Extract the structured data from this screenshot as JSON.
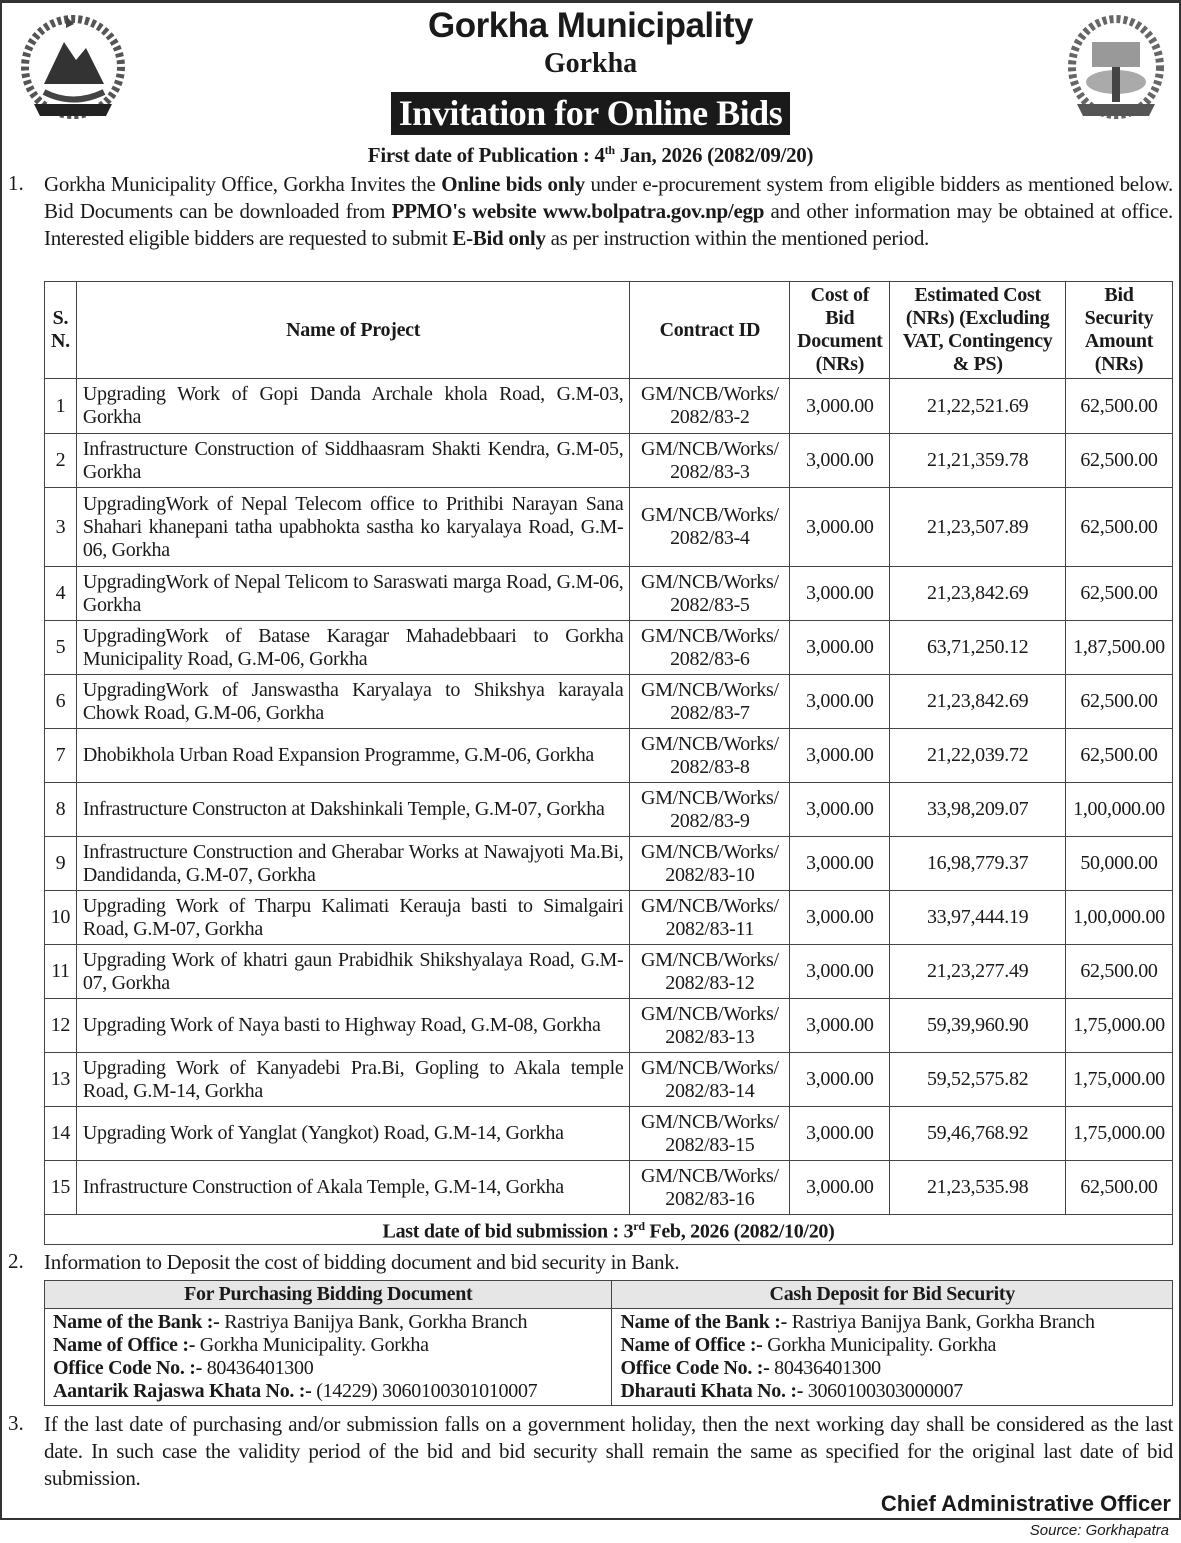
{
  "header": {
    "title": "Gorkha Municipality",
    "subtitle": "Gorkha",
    "notice_title": "Invitation for Online Bids",
    "pub_label": "First date of Publication : 4",
    "pub_sup": "th",
    "pub_rest": " Jan, 2026 (2082/09/20)"
  },
  "para1": {
    "num": "1.",
    "t1": "Gorkha Municipality Office, Gorkha Invites the ",
    "b1": "Online bids only",
    "t2": " under e-procurement system from eligible bidders as mentioned below. Bid Documents can be downloaded from ",
    "b2": "PPMO's website www.bolpatra.gov.np/egp",
    "t3": " and other information may be obtained at office. Interested eligible bidders are requested to submit ",
    "b3": "E-Bid only",
    "t4": " as per instruction within the mentioned period."
  },
  "table": {
    "headers": [
      "S. N.",
      "Name of Project",
      "Contract ID",
      "Cost of Bid Document (NRs)",
      "Estimated Cost (NRs) (Excluding VAT, Contingency & PS)",
      "Bid Security Amount (NRs)"
    ],
    "rows": [
      [
        "1",
        "Upgrading Work of Gopi Danda Archale khola Road, G.M-03, Gorkha",
        "GM/NCB/Works/ 2082/83-2",
        "3,000.00",
        "21,22,521.69",
        "62,500.00"
      ],
      [
        "2",
        "Infrastructure Construction of Siddhaasram Shakti Kendra, G.M-05, Gorkha",
        "GM/NCB/Works/ 2082/83-3",
        "3,000.00",
        "21,21,359.78",
        "62,500.00"
      ],
      [
        "3",
        "UpgradingWork of Nepal Telecom office to Prithibi Narayan Sana Shahari khanepani tatha upabhokta sastha ko karyalaya Road, G.M-06, Gorkha",
        "GM/NCB/Works/ 2082/83-4",
        "3,000.00",
        "21,23,507.89",
        "62,500.00"
      ],
      [
        "4",
        "UpgradingWork of Nepal Telicom to Saraswati marga Road, G.M-06, Gorkha",
        "GM/NCB/Works/ 2082/83-5",
        "3,000.00",
        "21,23,842.69",
        "62,500.00"
      ],
      [
        "5",
        "UpgradingWork of Batase Karagar Mahadebbaari to Gorkha Municipality Road, G.M-06, Gorkha",
        "GM/NCB/Works/ 2082/83-6",
        "3,000.00",
        "63,71,250.12",
        "1,87,500.00"
      ],
      [
        "6",
        "UpgradingWork of Janswastha Karyalaya to Shikshya karayala Chowk Road, G.M-06, Gorkha",
        "GM/NCB/Works/ 2082/83-7",
        "3,000.00",
        "21,23,842.69",
        "62,500.00"
      ],
      [
        "7",
        "Dhobikhola Urban Road Expansion Programme, G.M-06, Gorkha",
        "GM/NCB/Works/ 2082/83-8",
        "3,000.00",
        "21,22,039.72",
        "62,500.00"
      ],
      [
        "8",
        "Infrastructure Constructon at Dakshinkali Temple, G.M-07, Gorkha",
        "GM/NCB/Works/ 2082/83-9",
        "3,000.00",
        "33,98,209.07",
        "1,00,000.00"
      ],
      [
        "9",
        "Infrastructure Construction and Gherabar Works at Nawajyoti Ma.Bi, Dandidanda, G.M-07, Gorkha",
        "GM/NCB/Works/ 2082/83-10",
        "3,000.00",
        "16,98,779.37",
        "50,000.00"
      ],
      [
        "10",
        "Upgrading Work of Tharpu Kalimati Kerauja basti to Simalgairi Road, G.M-07, Gorkha",
        "GM/NCB/Works/ 2082/83-11",
        "3,000.00",
        "33,97,444.19",
        "1,00,000.00"
      ],
      [
        "11",
        "Upgrading Work of khatri gaun Prabidhik Shikshyalaya Road, G.M-07, Gorkha",
        "GM/NCB/Works/ 2082/83-12",
        "3,000.00",
        "21,23,277.49",
        "62,500.00"
      ],
      [
        "12",
        "Upgrading Work of Naya basti to Highway Road, G.M-08, Gorkha",
        "GM/NCB/Works/ 2082/83-13",
        "3,000.00",
        "59,39,960.90",
        "1,75,000.00"
      ],
      [
        "13",
        "Upgrading Work of Kanyadebi Pra.Bi, Gopling to Akala temple Road, G.M-14, Gorkha",
        "GM/NCB/Works/ 2082/83-14",
        "3,000.00",
        "59,52,575.82",
        "1,75,000.00"
      ],
      [
        "14",
        "Upgrading Work of Yanglat (Yangkot) Road, G.M-14, Gorkha",
        "GM/NCB/Works/ 2082/83-15",
        "3,000.00",
        "59,46,768.92",
        "1,75,000.00"
      ],
      [
        "15",
        "Infrastructure Construction of Akala Temple, G.M-14, Gorkha",
        "GM/NCB/Works/ 2082/83-16",
        "3,000.00",
        "21,23,535.98",
        "62,500.00"
      ]
    ],
    "footer_label": "Last date of bid submission : 3",
    "footer_sup": "rd",
    "footer_rest": " Feb, 2026 (2082/10/20)"
  },
  "para2": {
    "num": "2.",
    "text": "Information to Deposit the cost of bidding document and bid security in Bank."
  },
  "bank": {
    "headers": [
      "For Purchasing Bidding Document",
      "Cash Deposit for Bid Security"
    ],
    "left": [
      [
        "Name of the Bank :-",
        " Rastriya Banijya Bank, Gorkha Branch"
      ],
      [
        "Name of Office :-",
        " Gorkha Municipality. Gorkha"
      ],
      [
        "Office Code No. :-",
        " 80436401300"
      ],
      [
        "Aantarik Rajaswa Khata No. :-",
        " (14229) 3060100301010007"
      ]
    ],
    "right": [
      [
        "Name of the Bank :-",
        " Rastriya Banijya Bank, Gorkha Branch"
      ],
      [
        "Name of Office :-",
        " Gorkha Municipality. Gorkha"
      ],
      [
        "Office Code No. :-",
        " 80436401300"
      ],
      [
        "Dharauti Khata No. :-",
        " 3060100303000007"
      ]
    ]
  },
  "para3": {
    "num": "3.",
    "text": "If the last date of purchasing and/or submission falls on a government holiday, then the next working day shall be considered as the last date. In such case the validity period of the bid and bid security shall remain the same as specified for the original last date of bid submission."
  },
  "signature": "Chief Administrative Officer",
  "source": "Source: Gorkhapatra"
}
